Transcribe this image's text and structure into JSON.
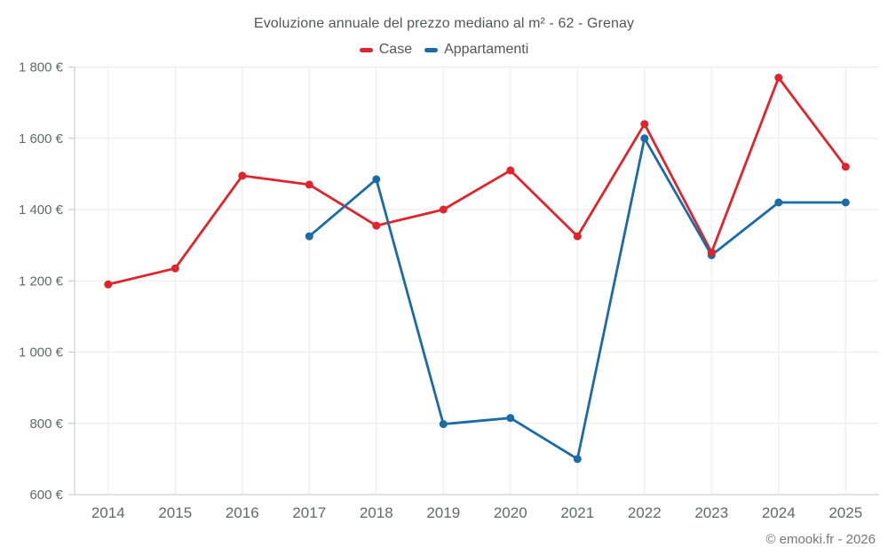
{
  "header": {
    "title": "Evoluzione annuale del prezzo mediano al m² - 62 - Grenay"
  },
  "legend": {
    "items": [
      {
        "label": "Case",
        "color": "#e0242b"
      },
      {
        "label": "Appartamenti",
        "color": "#1b6ca6"
      }
    ]
  },
  "footer": {
    "copyright": "© emooki.fr - 2026"
  },
  "chart_data": {
    "type": "line",
    "title": "Evoluzione annuale del prezzo mediano al m² - 62 - Grenay",
    "categories": [
      "2014",
      "2015",
      "2016",
      "2017",
      "2018",
      "2019",
      "2020",
      "2021",
      "2022",
      "2023",
      "2024",
      "2025"
    ],
    "series": [
      {
        "name": "Case",
        "color": "#e0242b",
        "values": [
          1190,
          1235,
          1495,
          1470,
          1355,
          1400,
          1510,
          1325,
          1640,
          1280,
          1770,
          1520
        ]
      },
      {
        "name": "Appartamenti",
        "color": "#1b6ca6",
        "values": [
          null,
          null,
          null,
          1325,
          1485,
          798,
          815,
          700,
          1600,
          1272,
          1420,
          1420
        ]
      }
    ],
    "xlabel": "",
    "ylabel": "",
    "ylim": [
      600,
      1800
    ],
    "ytick_step": 200,
    "ytick_labels": [
      "600 €",
      "800 €",
      "1 000 €",
      "1 200 €",
      "1 400 €",
      "1 600 €",
      "1 800 €"
    ],
    "grid": true,
    "legend_position": "top",
    "currency": "€"
  },
  "style": {
    "grid_color": "#eaeaea",
    "axis_color": "#c6c6c6",
    "tick_text_color": "#64676c",
    "point_radius": 4.5,
    "line_width": 2.8
  }
}
